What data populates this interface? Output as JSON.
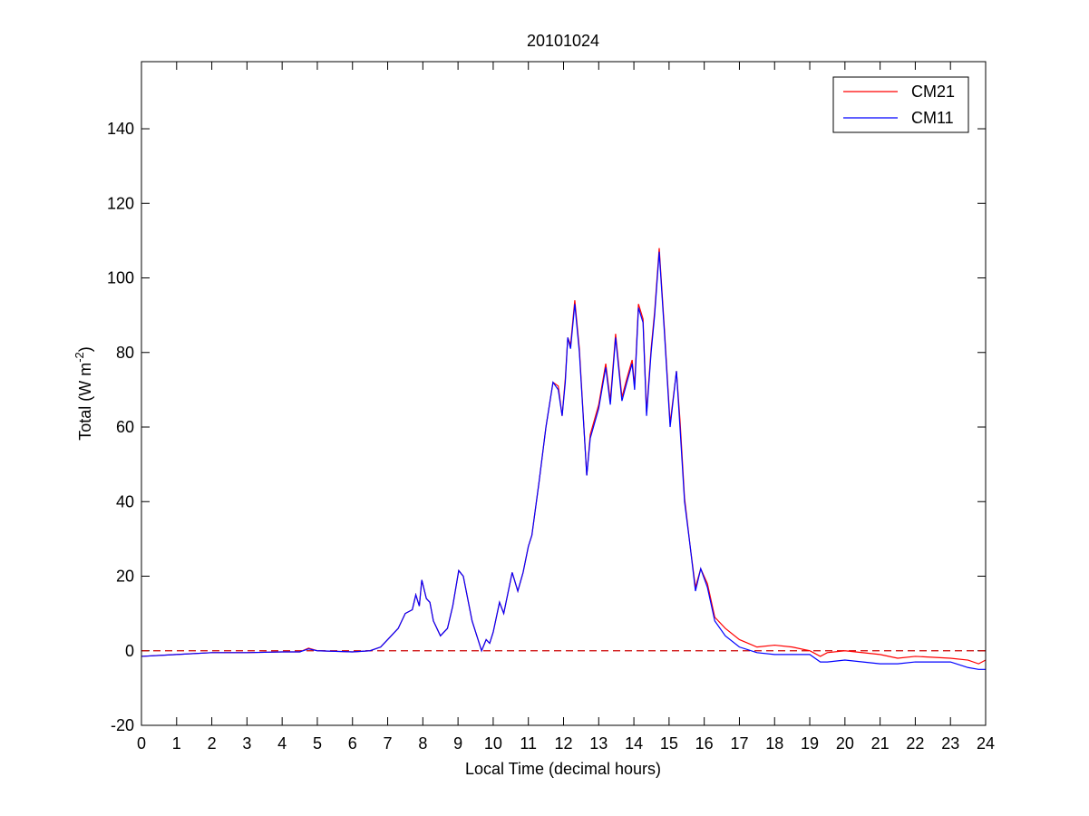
{
  "chart_data": {
    "type": "line",
    "title": "20101024",
    "xlabel": "Local Time (decimal hours)",
    "ylabel": [
      "Total (W m",
      "-2",
      ")"
    ],
    "x": [
      0,
      1,
      2,
      3,
      4,
      4.5,
      4.75,
      5,
      6,
      6.5,
      6.8,
      7,
      7.3,
      7.5,
      7.7,
      7.8,
      7.9,
      7.97,
      8.1,
      8.2,
      8.3,
      8.5,
      8.7,
      8.85,
      9.02,
      9.15,
      9.4,
      9.67,
      9.8,
      9.9,
      10.0,
      10.18,
      10.3,
      10.54,
      10.7,
      10.85,
      11.0,
      11.1,
      11.3,
      11.5,
      11.7,
      11.85,
      11.96,
      12.05,
      12.12,
      12.2,
      12.32,
      12.45,
      12.66,
      12.76,
      13.0,
      13.2,
      13.33,
      13.48,
      13.66,
      13.8,
      13.95,
      14.02,
      14.13,
      14.26,
      14.36,
      14.49,
      14.59,
      14.72,
      14.87,
      15.03,
      15.21,
      15.31,
      15.44,
      15.6,
      15.75,
      15.9,
      16.09,
      16.3,
      16.6,
      17.0,
      17.5,
      18,
      18.5,
      19,
      19.3,
      19.5,
      20,
      21,
      21.5,
      22,
      23,
      23.5,
      23.8,
      24
    ],
    "series": [
      {
        "name": "CM21",
        "color": "#ff0000",
        "values": [
          -1.5,
          -1,
          -0.5,
          -0.5,
          -0.3,
          -0.3,
          0.7,
          0,
          -0.3,
          0,
          1,
          3,
          6,
          10,
          11,
          15,
          12,
          19,
          14,
          13,
          8,
          4,
          6,
          12,
          21.5,
          20,
          8,
          0,
          3,
          2,
          5,
          13,
          10,
          21,
          16,
          21,
          28,
          31,
          45,
          60,
          72,
          71,
          63,
          73,
          84,
          82,
          94,
          81,
          47,
          58,
          66,
          77,
          67,
          85,
          68,
          73,
          78,
          71,
          93,
          89,
          64,
          81,
          91,
          108,
          86,
          61,
          75,
          62,
          41,
          28,
          17,
          22,
          18,
          9,
          6,
          3,
          1,
          1.5,
          1,
          0,
          -1.5,
          -0.5,
          0,
          -1,
          -2,
          -1.5,
          -2,
          -2.5,
          -3.5,
          -2.5
        ]
      },
      {
        "name": "CM11",
        "color": "#0000ff",
        "values": [
          -1.5,
          -1,
          -0.5,
          -0.5,
          -0.3,
          -0.3,
          0.5,
          0,
          -0.3,
          0,
          1,
          3,
          6,
          10,
          11,
          15,
          12,
          19,
          14,
          13,
          8,
          4,
          6,
          12,
          21.5,
          20,
          8,
          0,
          3,
          2,
          5,
          13,
          10,
          21,
          16,
          21,
          28,
          31,
          45,
          60,
          72,
          70,
          63,
          72,
          84,
          81,
          93,
          80,
          47,
          57,
          65,
          76,
          66,
          84,
          67,
          72,
          77,
          70,
          92,
          88,
          63,
          80,
          90,
          107,
          85,
          60,
          75,
          60,
          40,
          28,
          16,
          22,
          17,
          8,
          4,
          1,
          -0.5,
          -1,
          -1,
          -1,
          -3,
          -3,
          -2.5,
          -3.5,
          -3.5,
          -3,
          -3,
          -4.5,
          -5,
          -5
        ]
      }
    ],
    "reference_line": {
      "value": 0,
      "color": "#cc0000",
      "style": "dashed"
    },
    "xlim": [
      0,
      24
    ],
    "xticks": [
      0,
      1,
      2,
      3,
      4,
      5,
      6,
      7,
      8,
      9,
      10,
      11,
      12,
      13,
      14,
      15,
      16,
      17,
      18,
      19,
      20,
      21,
      22,
      23,
      24
    ],
    "ylim": [
      -20,
      158
    ],
    "yticks": [
      -20,
      0,
      20,
      40,
      60,
      80,
      100,
      120,
      140
    ],
    "legend": "upper right"
  }
}
